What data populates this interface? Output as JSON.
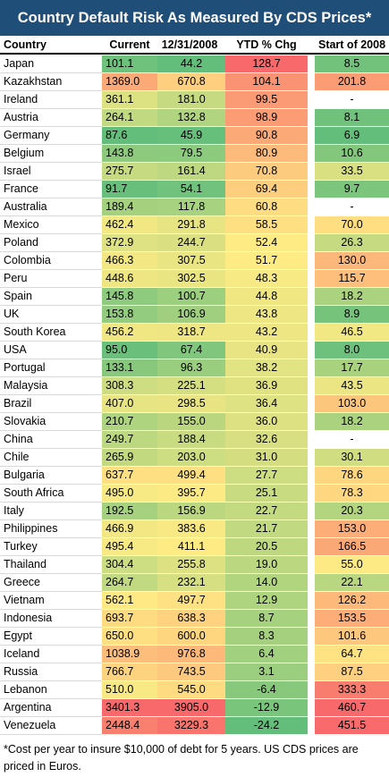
{
  "chart_data": {
    "type": "table",
    "title": "Country Default Risk As Measured By CDS Prices*",
    "columns": [
      "Country",
      "Current",
      "12/31/2008",
      "YTD % Chg",
      "Start of 2008"
    ],
    "rows": [
      {
        "country": "Japan",
        "current": "101.1",
        "dec2008": "44.2",
        "ytd": "128.7",
        "start2008": "8.5"
      },
      {
        "country": "Kazakhstan",
        "current": "1369.0",
        "dec2008": "670.8",
        "ytd": "104.1",
        "start2008": "201.8"
      },
      {
        "country": "Ireland",
        "current": "361.1",
        "dec2008": "181.0",
        "ytd": "99.5",
        "start2008": "-"
      },
      {
        "country": "Austria",
        "current": "264.1",
        "dec2008": "132.8",
        "ytd": "98.9",
        "start2008": "8.1"
      },
      {
        "country": "Germany",
        "current": "87.6",
        "dec2008": "45.9",
        "ytd": "90.8",
        "start2008": "6.9"
      },
      {
        "country": "Belgium",
        "current": "143.8",
        "dec2008": "79.5",
        "ytd": "80.9",
        "start2008": "10.6"
      },
      {
        "country": "Israel",
        "current": "275.7",
        "dec2008": "161.4",
        "ytd": "70.8",
        "start2008": "33.5"
      },
      {
        "country": "France",
        "current": "91.7",
        "dec2008": "54.1",
        "ytd": "69.4",
        "start2008": "9.7"
      },
      {
        "country": "Australia",
        "current": "189.4",
        "dec2008": "117.8",
        "ytd": "60.8",
        "start2008": "-"
      },
      {
        "country": "Mexico",
        "current": "462.4",
        "dec2008": "291.8",
        "ytd": "58.5",
        "start2008": "70.0"
      },
      {
        "country": "Poland",
        "current": "372.9",
        "dec2008": "244.7",
        "ytd": "52.4",
        "start2008": "26.3"
      },
      {
        "country": "Colombia",
        "current": "466.3",
        "dec2008": "307.5",
        "ytd": "51.7",
        "start2008": "130.0"
      },
      {
        "country": "Peru",
        "current": "448.6",
        "dec2008": "302.5",
        "ytd": "48.3",
        "start2008": "115.7"
      },
      {
        "country": "Spain",
        "current": "145.8",
        "dec2008": "100.7",
        "ytd": "44.8",
        "start2008": "18.2"
      },
      {
        "country": "UK",
        "current": "153.8",
        "dec2008": "106.9",
        "ytd": "43.8",
        "start2008": "8.9"
      },
      {
        "country": "South Korea",
        "current": "456.2",
        "dec2008": "318.7",
        "ytd": "43.2",
        "start2008": "46.5"
      },
      {
        "country": "USA",
        "current": "95.0",
        "dec2008": "67.4",
        "ytd": "40.9",
        "start2008": "8.0"
      },
      {
        "country": "Portugal",
        "current": "133.1",
        "dec2008": "96.3",
        "ytd": "38.2",
        "start2008": "17.7"
      },
      {
        "country": "Malaysia",
        "current": "308.3",
        "dec2008": "225.1",
        "ytd": "36.9",
        "start2008": "43.5"
      },
      {
        "country": "Brazil",
        "current": "407.0",
        "dec2008": "298.5",
        "ytd": "36.4",
        "start2008": "103.0"
      },
      {
        "country": "Slovakia",
        "current": "210.7",
        "dec2008": "155.0",
        "ytd": "36.0",
        "start2008": "18.2"
      },
      {
        "country": "China",
        "current": "249.7",
        "dec2008": "188.4",
        "ytd": "32.6",
        "start2008": "-"
      },
      {
        "country": "Chile",
        "current": "265.9",
        "dec2008": "203.0",
        "ytd": "31.0",
        "start2008": "30.1"
      },
      {
        "country": "Bulgaria",
        "current": "637.7",
        "dec2008": "499.4",
        "ytd": "27.7",
        "start2008": "78.6"
      },
      {
        "country": "South Africa",
        "current": "495.0",
        "dec2008": "395.7",
        "ytd": "25.1",
        "start2008": "78.3"
      },
      {
        "country": "Italy",
        "current": "192.5",
        "dec2008": "156.9",
        "ytd": "22.7",
        "start2008": "20.3"
      },
      {
        "country": "Philippines",
        "current": "466.9",
        "dec2008": "383.6",
        "ytd": "21.7",
        "start2008": "153.0"
      },
      {
        "country": "Turkey",
        "current": "495.4",
        "dec2008": "411.1",
        "ytd": "20.5",
        "start2008": "166.5"
      },
      {
        "country": "Thailand",
        "current": "304.4",
        "dec2008": "255.8",
        "ytd": "19.0",
        "start2008": "55.0"
      },
      {
        "country": "Greece",
        "current": "264.7",
        "dec2008": "232.1",
        "ytd": "14.0",
        "start2008": "22.1"
      },
      {
        "country": "Vietnam",
        "current": "562.1",
        "dec2008": "497.7",
        "ytd": "12.9",
        "start2008": "126.2"
      },
      {
        "country": "Indonesia",
        "current": "693.7",
        "dec2008": "638.3",
        "ytd": "8.7",
        "start2008": "153.5"
      },
      {
        "country": "Egypt",
        "current": "650.0",
        "dec2008": "600.0",
        "ytd": "8.3",
        "start2008": "101.6"
      },
      {
        "country": "Iceland",
        "current": "1038.9",
        "dec2008": "976.8",
        "ytd": "6.4",
        "start2008": "64.7"
      },
      {
        "country": "Russia",
        "current": "766.7",
        "dec2008": "743.5",
        "ytd": "3.1",
        "start2008": "87.5"
      },
      {
        "country": "Lebanon",
        "current": "510.0",
        "dec2008": "545.0",
        "ytd": "-6.4",
        "start2008": "333.3"
      },
      {
        "country": "Argentina",
        "current": "3401.3",
        "dec2008": "3905.0",
        "ytd": "-12.9",
        "start2008": "460.7"
      },
      {
        "country": "Venezuela",
        "current": "2448.4",
        "dec2008": "3229.3",
        "ytd": "-24.2",
        "start2008": "451.5"
      }
    ],
    "color_scale": {
      "low": "#63be7b",
      "mid": "#ffeb84",
      "high": "#f8696b"
    }
  },
  "footnote": "*Cost per year to insure $10,000 of debt for 5 years.  US CDS prices are priced in Euros."
}
